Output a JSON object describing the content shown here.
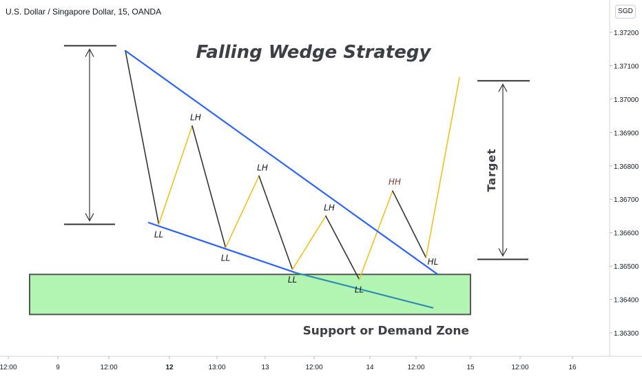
{
  "header": {
    "symbol_title": "U.S. Dollar / Singapore Dollar, 15, OANDA",
    "currency": "SGD"
  },
  "chart_data": {
    "type": "line",
    "title": "Falling Wedge Strategy",
    "ylim": [
      1.3625,
      1.3725
    ],
    "y_ticks": [
      "1.37200",
      "1.37100",
      "1.37000",
      "1.36900",
      "1.36800",
      "1.36700",
      "1.36600",
      "1.36500",
      "1.36400",
      "1.36300"
    ],
    "x_ticks": [
      "12:00",
      "9",
      "12:00",
      "12",
      "13:00",
      "13",
      "12:00",
      "14",
      "12:00",
      "15",
      "12:00",
      "16"
    ],
    "x_ticks_bold": [
      "12"
    ],
    "grid": false,
    "price_path": {
      "bearish_legs_color": "#333333",
      "bullish_legs_color": "#f0c020",
      "points": [
        {
          "label": "",
          "t": 0.0,
          "price": 1.37145
        },
        {
          "label": "LL",
          "t": 1.0,
          "price": 1.36625
        },
        {
          "label": "LH",
          "t": 2.0,
          "price": 1.3692
        },
        {
          "label": "LL",
          "t": 3.0,
          "price": 1.36555
        },
        {
          "label": "LH",
          "t": 4.0,
          "price": 1.3677
        },
        {
          "label": "LL",
          "t": 5.0,
          "price": 1.3649
        },
        {
          "label": "LH",
          "t": 6.0,
          "price": 1.3665
        },
        {
          "label": "LL",
          "t": 7.0,
          "price": 1.3646
        },
        {
          "label": "HH",
          "t": 8.0,
          "price": 1.36725
        },
        {
          "label": "HL",
          "t": 9.0,
          "price": 1.36525
        },
        {
          "label": "",
          "t": 10.0,
          "price": 1.37065
        }
      ]
    },
    "trendlines": [
      {
        "name": "",
        "color": "#2962ff",
        "from": {
          "t": 0.0,
          "price": 1.37145
        },
        "to": {
          "t": 9.35,
          "price": 1.36475
        }
      },
      {
        "name": "",
        "color": "#2962ff",
        "from": {
          "t": 0.7,
          "price": 1.3663
        },
        "to": {
          "t": 5.1,
          "price": 1.3648
        }
      },
      {
        "name": "",
        "color": "#2e8bb4",
        "from": {
          "t": 5.1,
          "price": 1.3648
        },
        "to": {
          "t": 9.2,
          "price": 1.36375
        }
      }
    ],
    "zone": {
      "label": "Support or Demand Zone",
      "price_top": 1.36475,
      "price_bottom": 1.36355,
      "fill": "#b2f5b2",
      "border": "#555555"
    },
    "measurements": [
      {
        "label": "",
        "price_top": 1.3716,
        "price_bottom": 1.36625
      },
      {
        "label": "Target",
        "price_top": 1.37055,
        "price_bottom": 1.3652
      }
    ]
  }
}
